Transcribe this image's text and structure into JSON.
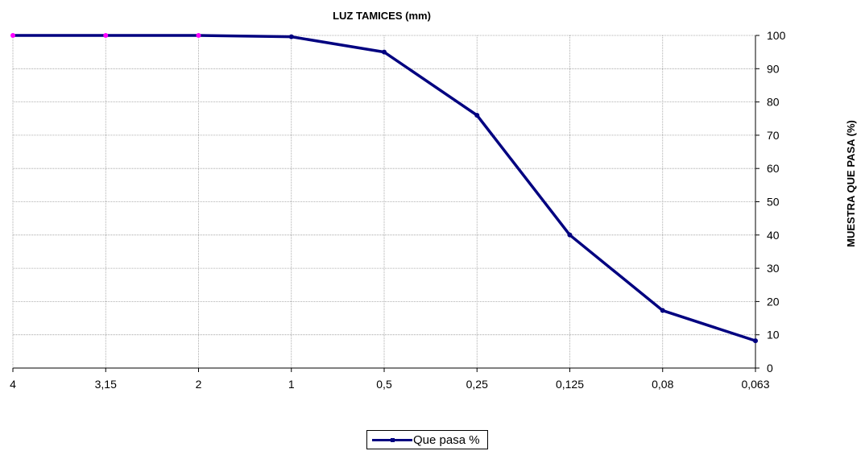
{
  "chart_data": {
    "type": "line",
    "title": "LUZ TAMICES (mm)",
    "xlabel": "",
    "ylabel": "MUESTRA QUE PASA (%)",
    "categories": [
      "4",
      "3,15",
      "2",
      "1",
      "0,5",
      "0,25",
      "0,125",
      "0,08",
      "0,063"
    ],
    "series": [
      {
        "name": "Que pasa %",
        "values": [
          100,
          100,
          100,
          99.6,
          95,
          76,
          40,
          17.3,
          8.2
        ],
        "color": "#000080"
      }
    ],
    "highlighted_points_color": "#ff00ff",
    "ylim": [
      0,
      100
    ],
    "yticks": [
      0,
      10,
      20,
      30,
      40,
      50,
      60,
      70,
      80,
      90,
      100
    ],
    "y_axis_side": "right",
    "grid": true,
    "legend_position": "bottom-center"
  }
}
